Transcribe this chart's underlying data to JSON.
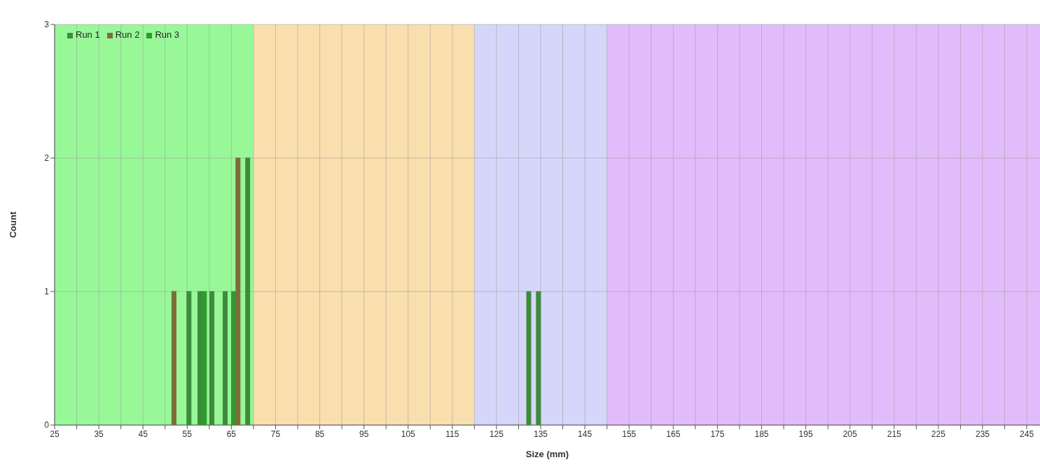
{
  "chart_data": {
    "type": "bar",
    "xlabel": "Size (mm)",
    "ylabel": "Count",
    "xlim": [
      25,
      248
    ],
    "xticks": [
      25,
      {
        "value": 30,
        "label": null
      },
      35,
      {
        "value": 40,
        "label": null
      },
      45,
      {
        "value": 50,
        "label": null
      },
      55,
      {
        "value": 60,
        "label": null
      },
      65,
      {
        "value": 70,
        "label": null
      },
      75,
      {
        "value": 80,
        "label": null
      },
      85,
      {
        "value": 90,
        "label": null
      },
      95,
      {
        "value": 100,
        "label": null
      },
      105,
      {
        "value": 110,
        "label": null
      },
      115,
      {
        "value": 120,
        "label": null
      },
      125,
      {
        "value": 130,
        "label": null
      },
      135,
      {
        "value": 140,
        "label": null
      },
      145,
      {
        "value": 150,
        "label": null
      },
      155,
      {
        "value": 160,
        "label": null
      },
      165,
      {
        "value": 170,
        "label": null
      },
      175,
      {
        "value": 180,
        "label": null
      },
      185,
      {
        "value": 190,
        "label": null
      },
      195,
      {
        "value": 200,
        "label": null
      },
      205,
      {
        "value": 210,
        "label": null
      },
      215,
      {
        "value": 220,
        "label": null
      },
      225,
      {
        "value": 230,
        "label": null
      },
      235,
      {
        "value": 240,
        "label": null
      },
      245
    ],
    "ylim": [
      0,
      3
    ],
    "yticks": [
      0,
      1,
      2,
      3
    ],
    "grid": true,
    "legend": "top left",
    "bands": [
      {
        "axis": "x",
        "from": 25,
        "to": 70,
        "color": "#98f898"
      },
      {
        "axis": "x",
        "from": 70,
        "to": 120,
        "color": "#fadfae"
      },
      {
        "axis": "x",
        "from": 120,
        "to": 150,
        "color": "#d6d6fa"
      },
      {
        "axis": "x",
        "from": 150,
        "to": 248,
        "color": "#e2bcfa"
      }
    ],
    "series": [
      {
        "name": "Run 1",
        "color": "#3d8b3d",
        "x": [
          55.4,
          57.9,
          60.6,
          63.6,
          68.7,
          132.3,
          134.5
        ],
        "values": [
          1,
          1,
          1,
          1,
          2,
          1,
          1
        ]
      },
      {
        "name": "Run 2",
        "color": "#7d6b3a",
        "x": [
          52,
          66.5
        ],
        "values": [
          1,
          2
        ]
      },
      {
        "name": "Run 3",
        "color": "#2e9b2e",
        "x": [
          58.9,
          65.5
        ],
        "values": [
          1,
          1
        ]
      }
    ]
  }
}
